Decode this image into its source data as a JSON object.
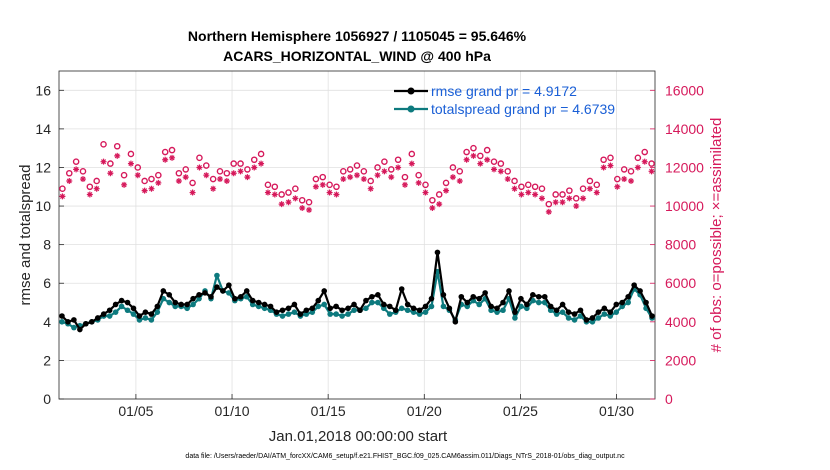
{
  "chart_data": {
    "type": "line",
    "title": "Northern Hemisphere 1056927 / 1105045 = 95.646%",
    "subtitle": "ACARS_HORIZONTAL_WIND @ 400 hPa",
    "xlabel": "Jan.01,2018 00:00:00 start",
    "ylabel": "rmse and totalspread",
    "ylabel_right": "# of obs: o=possible; ×=assimilated",
    "footnote": "data file: /Users/raeder/DAI/ATM_forcXX/CAM6_setup/f.e21.FHIST_BGC.f09_025.CAM6assim.011/Diags_NTrS_2018-01/obs_diag_output.nc",
    "xlim": [
      1,
      32
    ],
    "ylim": [
      0,
      17
    ],
    "ylim_right": [
      0,
      17000
    ],
    "x_ticks": [
      5,
      10,
      15,
      20,
      25,
      30
    ],
    "x_tick_labels": [
      "01/05",
      "01/10",
      "01/15",
      "01/20",
      "01/25",
      "01/30"
    ],
    "y_ticks": [
      "0",
      "2",
      "4",
      "6",
      "8",
      "10",
      "12",
      "14",
      "16"
    ],
    "y_ticks_right": [
      "0",
      "2000",
      "4000",
      "6000",
      "8000",
      "10000",
      "12000",
      "14000",
      "16000"
    ],
    "grid": true,
    "legend_position": "top-right",
    "colors": {
      "rmse": "#000000",
      "totalspread": "#0d7a7e",
      "obs": "#d6195b",
      "grid": "#e0e0e0",
      "legend_text": "#1a5fd6"
    },
    "series": [
      {
        "name": "rmse grand pr = 4.9172",
        "values": [
          4.3,
          4.0,
          4.1,
          3.6,
          3.9,
          4.0,
          4.2,
          4.4,
          4.6,
          4.9,
          5.1,
          5.0,
          4.7,
          4.3,
          4.5,
          4.4,
          4.8,
          5.6,
          5.4,
          5.0,
          4.9,
          4.9,
          5.2,
          5.4,
          5.5,
          5.3,
          5.8,
          5.6,
          5.9,
          5.2,
          5.3,
          5.6,
          5.1,
          5.0,
          4.9,
          4.8,
          4.5,
          4.6,
          4.7,
          4.9,
          4.4,
          4.6,
          4.7,
          5.1,
          5.6,
          4.7,
          4.8,
          4.6,
          4.7,
          4.9,
          4.6,
          5.1,
          5.3,
          5.4,
          4.9,
          4.8,
          4.6,
          5.7,
          4.9,
          4.7,
          4.6,
          4.8,
          5.2,
          7.6,
          5.4,
          4.7,
          4.0,
          5.3,
          5.0,
          5.3,
          5.2,
          5.5,
          4.8,
          4.7,
          5.0,
          5.6,
          4.5,
          5.2,
          4.9,
          5.4,
          5.3,
          5.3,
          4.8,
          4.6,
          4.9,
          4.5,
          4.4,
          4.6,
          4.1,
          4.2,
          4.5,
          4.7,
          4.5,
          4.9,
          5.0,
          5.3,
          5.9,
          5.6,
          5.0,
          4.3
        ]
      },
      {
        "name": "totalspread grand pr = 4.6739",
        "values": [
          4.0,
          3.9,
          3.7,
          3.8,
          3.9,
          4.0,
          4.1,
          4.3,
          4.3,
          4.5,
          4.8,
          4.6,
          4.4,
          4.1,
          4.2,
          4.1,
          4.5,
          5.2,
          5.0,
          4.8,
          4.8,
          4.7,
          4.9,
          5.2,
          5.6,
          5.2,
          6.4,
          5.6,
          5.5,
          5.1,
          5.2,
          5.3,
          4.9,
          4.8,
          4.7,
          4.6,
          4.4,
          4.3,
          4.4,
          4.5,
          4.3,
          4.4,
          4.5,
          4.8,
          4.9,
          4.4,
          4.4,
          4.3,
          4.4,
          4.6,
          4.6,
          4.7,
          5.0,
          5.0,
          4.7,
          4.4,
          4.5,
          4.7,
          4.6,
          4.5,
          4.4,
          4.5,
          4.8,
          6.6,
          4.8,
          4.6,
          4.1,
          4.9,
          4.8,
          5.1,
          4.9,
          5.2,
          4.6,
          4.5,
          4.6,
          5.2,
          4.2,
          4.8,
          4.7,
          5.1,
          5.0,
          5.0,
          4.6,
          4.4,
          4.5,
          4.2,
          4.1,
          4.3,
          4.0,
          4.0,
          4.2,
          4.4,
          4.3,
          4.5,
          4.8,
          5.0,
          5.7,
          5.4,
          4.7,
          4.2
        ]
      }
    ],
    "obs_possible": [
      10900,
      11700,
      12300,
      11800,
      11000,
      11300,
      13200,
      12200,
      13100,
      11600,
      12700,
      12000,
      11300,
      11400,
      11600,
      12800,
      12900,
      11700,
      11900,
      11200,
      12500,
      12100,
      11400,
      11800,
      11700,
      12200,
      12200,
      11900,
      12400,
      12700,
      11100,
      11000,
      10600,
      10700,
      10900,
      10300,
      10200,
      11400,
      11500,
      11100,
      11000,
      11800,
      11900,
      12100,
      11800,
      11300,
      12000,
      12300,
      11900,
      12400,
      11500,
      12700,
      11600,
      11100,
      10300,
      10600,
      11200,
      12000,
      11800,
      12800,
      13000,
      12600,
      12900,
      12300,
      12200,
      11800,
      11300,
      11000,
      11100,
      11000,
      10900,
      10100,
      10600,
      10600,
      10800,
      10400,
      10900,
      11300,
      11100,
      12400,
      12500,
      11400,
      11900,
      11800,
      12500,
      12800,
      12200
    ],
    "obs_assimilated": [
      10500,
      11300,
      11900,
      11400,
      10600,
      10900,
      12300,
      11700,
      12600,
      11100,
      12200,
      11600,
      10800,
      10900,
      11200,
      12400,
      12500,
      11300,
      11500,
      10700,
      12000,
      11600,
      10900,
      11400,
      11300,
      11700,
      11800,
      11500,
      12000,
      12200,
      10700,
      10600,
      10100,
      10200,
      10400,
      9900,
      9800,
      11000,
      11100,
      10700,
      10600,
      11400,
      11500,
      11600,
      11400,
      10900,
      11600,
      11800,
      11500,
      12000,
      11100,
      12200,
      11200,
      10700,
      9900,
      10100,
      10800,
      11500,
      11300,
      12400,
      12600,
      12200,
      12400,
      11900,
      11800,
      11400,
      10900,
      10600,
      10700,
      10600,
      10400,
      9700,
      10200,
      10200,
      10400,
      10000,
      10400,
      10900,
      10700,
      12000,
      12100,
      11000,
      11400,
      11300,
      12000,
      12300,
      11800
    ]
  },
  "legend": {
    "rmse_label": "rmse grand pr = 4.9172",
    "spread_label": "totalspread grand pr = 4.6739"
  }
}
